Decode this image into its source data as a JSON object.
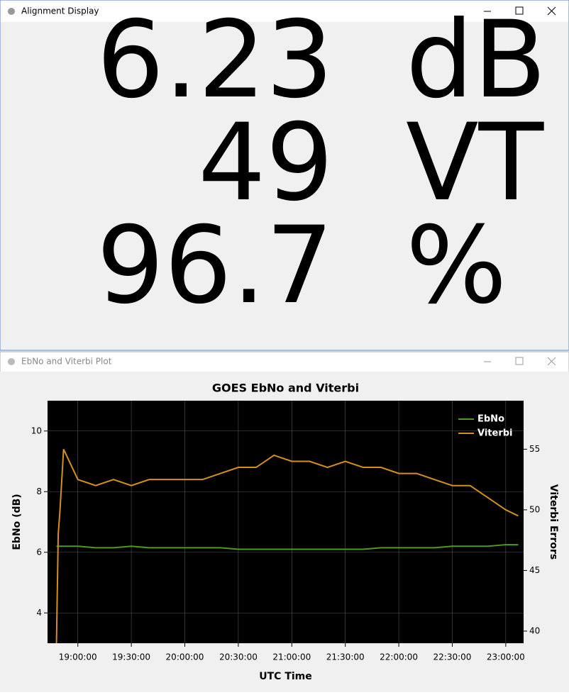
{
  "alignment_window": {
    "title": "Alignment Display",
    "rows": [
      {
        "value": "6.23",
        "unit": "dB"
      },
      {
        "value": "49",
        "unit": "VT"
      },
      {
        "value": "96.7",
        "unit": "%"
      }
    ]
  },
  "plot_window": {
    "title": "EbNo and Viterbi Plot",
    "chart": {
      "type": "line",
      "title": "GOES EbNo and Viterbi",
      "x_label": "UTC Time",
      "y_label": "EbNo (dB)",
      "y2_label": "Viterbi Errors",
      "legend": "top-right",
      "grid": true,
      "x": [
        1128,
        1129,
        1130,
        1132,
        1140,
        1150,
        1160,
        1170,
        1180,
        1190,
        1200,
        1210,
        1220,
        1230,
        1240,
        1250,
        1260,
        1270,
        1280,
        1290,
        1300,
        1310,
        1320,
        1330,
        1340,
        1350,
        1360,
        1370,
        1380,
        1387
      ],
      "series": [
        {
          "name": "EbNo",
          "color": "#4e9a1e",
          "values": [
            6.2,
            6.2,
            6.2,
            6.2,
            6.2,
            6.15,
            6.15,
            6.2,
            6.15,
            6.15,
            6.15,
            6.15,
            6.15,
            6.1,
            6.1,
            6.1,
            6.1,
            6.1,
            6.1,
            6.1,
            6.1,
            6.15,
            6.15,
            6.15,
            6.15,
            6.2,
            6.2,
            6.2,
            6.25,
            6.25
          ]
        },
        {
          "name": "Viterbi",
          "color": "#d4901a",
          "axis": "y2",
          "values": [
            39,
            48,
            50,
            55,
            52.5,
            52,
            52.5,
            52,
            52.5,
            52.5,
            52.5,
            52.5,
            53,
            53.5,
            53.5,
            54.5,
            54,
            54,
            53.5,
            54,
            53.5,
            53.5,
            53,
            53,
            52.5,
            52,
            52,
            51,
            50,
            49.5
          ]
        }
      ],
      "xlim": [
        1123,
        1390
      ],
      "xticks": [
        {
          "value": 1140,
          "label": "19:00:00"
        },
        {
          "value": 1170,
          "label": "19:30:00"
        },
        {
          "value": 1200,
          "label": "20:00:00"
        },
        {
          "value": 1230,
          "label": "20:30:00"
        },
        {
          "value": 1260,
          "label": "21:00:00"
        },
        {
          "value": 1290,
          "label": "21:30:00"
        },
        {
          "value": 1320,
          "label": "22:00:00"
        },
        {
          "value": 1350,
          "label": "22:30:00"
        },
        {
          "value": 1380,
          "label": "23:00:00"
        }
      ],
      "ylim": [
        3,
        11
      ],
      "yticks": [
        4,
        6,
        8,
        10
      ],
      "y2lim": [
        39,
        59
      ],
      "y2ticks": [
        40,
        45,
        50,
        55
      ]
    }
  }
}
